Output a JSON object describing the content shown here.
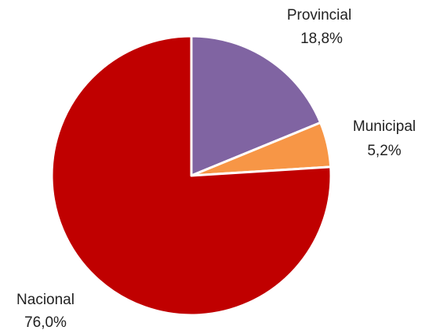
{
  "chart_data": {
    "type": "pie",
    "categories": [
      "Provincial",
      "Municipal",
      "Nacional"
    ],
    "values": [
      18.8,
      5.2,
      76.0
    ],
    "value_labels": [
      "18,8%",
      "5,2%",
      "76,0%"
    ],
    "colors": [
      "#8064a2",
      "#f79646",
      "#c00000"
    ]
  }
}
